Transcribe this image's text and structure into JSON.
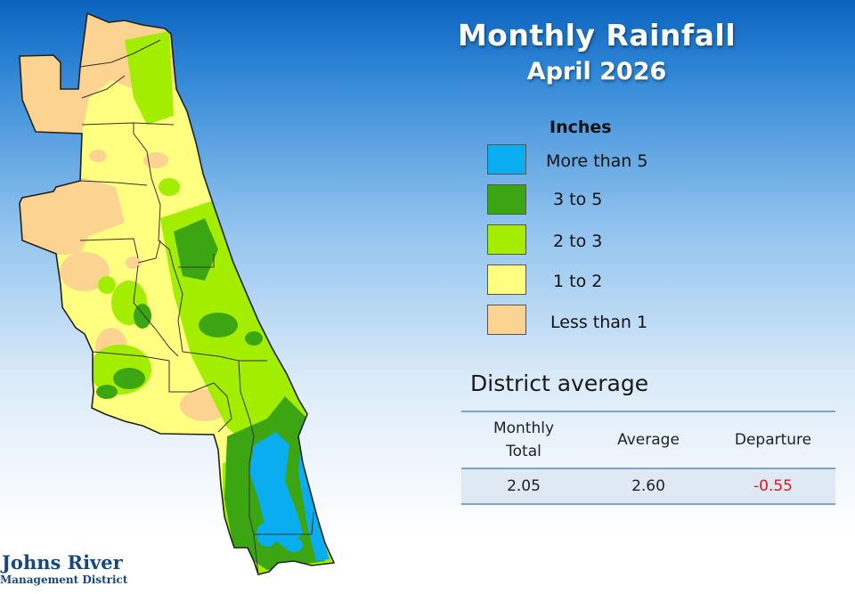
{
  "title": "Monthly Rainfall",
  "subtitle": "April 2026",
  "legend": {
    "title": "Inches",
    "items": [
      {
        "label": "More than 5",
        "color": "#0aaef0"
      },
      {
        "label": "3 to 5",
        "color": "#3ca512"
      },
      {
        "label": "2 to 3",
        "color": "#a3ee00"
      },
      {
        "label": "1 to 2",
        "color": "#ffff80"
      },
      {
        "label": "Less than 1",
        "color": "#fcd391"
      }
    ]
  },
  "summary": {
    "title": "District average",
    "headers": [
      "Monthly\nTotal",
      "Average",
      "Departure"
    ],
    "values": [
      "2.05",
      "2.60",
      "-0.55"
    ]
  },
  "colors": {
    "departure_negative": "#e8131b",
    "county_border": "#333333"
  },
  "logo": {
    "line1": "Johns River",
    "line2": "Management District"
  }
}
